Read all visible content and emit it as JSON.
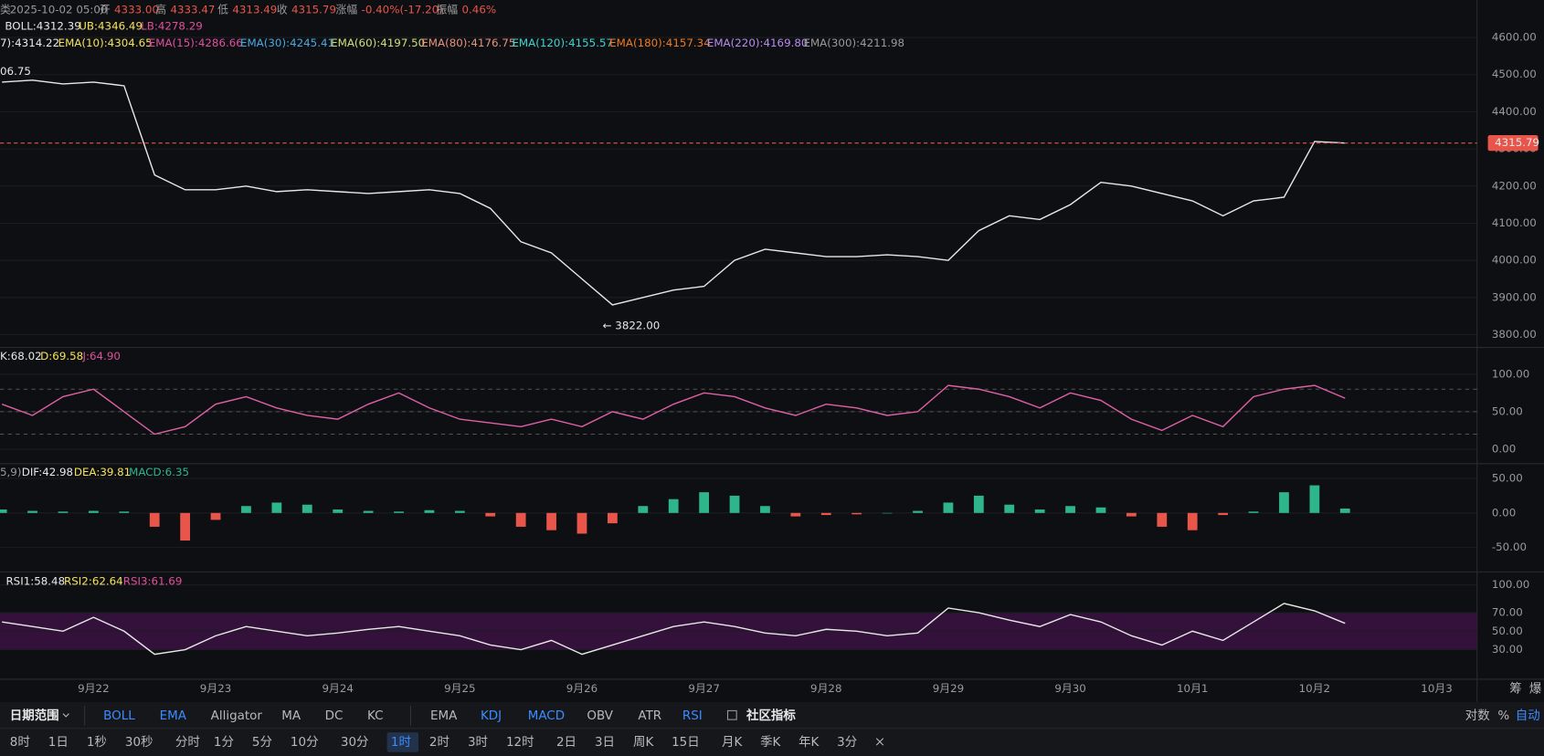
{
  "header": {
    "items": [
      "类",
      "2025-10-02 05:00",
      "开",
      "4333.00",
      "高",
      "4333.47",
      "低",
      "4313.49",
      "收",
      "4315.79",
      "涨幅",
      "-0.40%(-17.20)",
      "振幅",
      "0.46%"
    ]
  },
  "legends": {
    "boll": [
      "BOLL:4312.39",
      "UB:4346.49",
      "LB:4278.29"
    ],
    "ema": [
      "7):4314.22",
      "EMA(10):4304.65",
      "EMA(15):4286.66",
      "EMA(30):4245.41",
      "EMA(60):4197.50",
      "EMA(80):4176.75",
      "EMA(120):4155.57",
      "EMA(180):4157.34",
      "EMA(220):4169.80",
      "EMA(300):4211.98"
    ],
    "side": "06.75",
    "kdj": [
      "K:68.02",
      "D:69.58",
      "J:64.90"
    ],
    "macd": [
      "5,9)",
      "DIF:42.98",
      "DEA:39.81",
      "MACD:6.35"
    ],
    "rsi": [
      "RSI1:58.48",
      "RSI2:62.64",
      "RSI3:61.69"
    ]
  },
  "chart_data": [
    {
      "type": "line",
      "color": "#e8e8e8",
      "categories": [
        null,
        null,
        null,
        "9月22",
        null,
        null,
        null,
        "9月23",
        null,
        null,
        null,
        "9月24",
        null,
        null,
        null,
        "9月25",
        null,
        null,
        null,
        "9月26",
        null,
        null,
        null,
        "9月27",
        null,
        null,
        null,
        "9月28",
        null,
        null,
        null,
        "9月29",
        null,
        null,
        null,
        "9月30",
        null,
        null,
        null,
        "10月1",
        null,
        null,
        null,
        "10月2",
        null,
        null,
        null,
        "10月3"
      ],
      "values": [
        4480,
        4485,
        4475,
        4480,
        4470,
        4230,
        4190,
        4190,
        4200,
        4185,
        4190,
        4185,
        4180,
        4185,
        4190,
        4180,
        4140,
        4050,
        4020,
        3950,
        3880,
        3900,
        3920,
        3930,
        4000,
        4030,
        4020,
        4010,
        4010,
        4015,
        4010,
        4000,
        4080,
        4120,
        4110,
        4150,
        4210,
        4200,
        4180,
        4160,
        4120,
        4160,
        4170,
        4320,
        4315.79,
        null,
        null,
        null
      ],
      "ylim": [
        3768,
        4701
      ],
      "yticks": [
        {
          "value": 4600,
          "label": "4600.00"
        },
        {
          "value": 4500,
          "label": "4500.00"
        },
        {
          "value": 4400,
          "label": "4400.00"
        },
        {
          "value": 4300,
          "label": "4300.00"
        },
        {
          "value": 4200,
          "label": "4200.00"
        },
        {
          "value": 4100,
          "label": "4100.00"
        },
        {
          "value": 4000,
          "label": "4000.00"
        },
        {
          "value": 3900,
          "label": "3900.00"
        },
        {
          "value": 3800,
          "label": "3800.00"
        }
      ],
      "last_price": 4315.79,
      "annotation": "← 3822.00"
    },
    {
      "type": "line",
      "color": "#e060a8",
      "values": [
        60,
        45,
        70,
        80,
        50,
        20,
        30,
        60,
        70,
        55,
        45,
        40,
        60,
        75,
        55,
        40,
        35,
        30,
        40,
        30,
        50,
        40,
        60,
        75,
        70,
        55,
        45,
        60,
        55,
        45,
        50,
        85,
        80,
        70,
        55,
        75,
        65,
        40,
        25,
        45,
        30,
        70,
        80,
        85,
        68.02,
        null,
        null,
        null
      ],
      "ylim": [
        -18,
        133
      ],
      "yticks": [
        {
          "value": 100,
          "label": "100.00"
        },
        {
          "value": 50,
          "label": "50.00"
        },
        {
          "value": 0,
          "label": "0.00"
        }
      ],
      "ref_lines": [
        80,
        50,
        20
      ]
    },
    {
      "type": "bar",
      "up_color": "#2fb58a",
      "down_color": "#e8554a",
      "values": [
        5,
        3,
        2,
        3,
        2,
        -20,
        -40,
        -10,
        10,
        15,
        12,
        5,
        3,
        2,
        4,
        3,
        -5,
        -20,
        -25,
        -30,
        -15,
        10,
        20,
        30,
        25,
        10,
        -5,
        -3,
        -2,
        0,
        3,
        15,
        25,
        12,
        5,
        10,
        8,
        -5,
        -20,
        -25,
        -3,
        2,
        30,
        40,
        6.35,
        null,
        null,
        null
      ],
      "ylim": [
        -84,
        70
      ],
      "yticks": [
        {
          "value": 50,
          "label": "50.00"
        },
        {
          "value": 0,
          "label": "0.00"
        },
        {
          "value": -50,
          "label": "-50.00"
        }
      ]
    },
    {
      "type": "line",
      "color": "#e8e8e8",
      "values": [
        60,
        55,
        50,
        65,
        50,
        25,
        30,
        45,
        55,
        50,
        45,
        48,
        52,
        55,
        50,
        45,
        35,
        30,
        40,
        25,
        35,
        45,
        55,
        60,
        55,
        48,
        45,
        52,
        50,
        45,
        48,
        75,
        70,
        62,
        55,
        68,
        60,
        45,
        35,
        50,
        40,
        60,
        80,
        72,
        58.48,
        null,
        null,
        null
      ],
      "ylim": [
        -2,
        112
      ],
      "yticks": [
        {
          "value": 100,
          "label": "100.00"
        },
        {
          "value": 70,
          "label": "70.00"
        },
        {
          "value": 50,
          "label": "50.00"
        },
        {
          "value": 30,
          "label": "30.00"
        }
      ],
      "band": [
        30,
        70
      ]
    }
  ],
  "toolbar": {
    "range": "日期范围",
    "overlays": [
      "BOLL",
      "EMA",
      "Alligator",
      "MA",
      "DC",
      "KC"
    ],
    "indicators": [
      "EMA",
      "KDJ",
      "MACD",
      "OBV",
      "ATR",
      "RSI"
    ],
    "community": "社区指标",
    "right": [
      "对数",
      "%",
      "自动"
    ],
    "intervals": [
      "8时",
      "1日",
      "1秒",
      "30秒",
      "分时",
      "1分",
      "5分",
      "10分",
      "30分",
      "1时",
      "2时",
      "3时",
      "12时",
      "2日",
      "3日",
      "周K",
      "15日",
      "月K",
      "季K",
      "年K",
      "3分"
    ],
    "side": [
      "筹",
      "爆"
    ]
  }
}
